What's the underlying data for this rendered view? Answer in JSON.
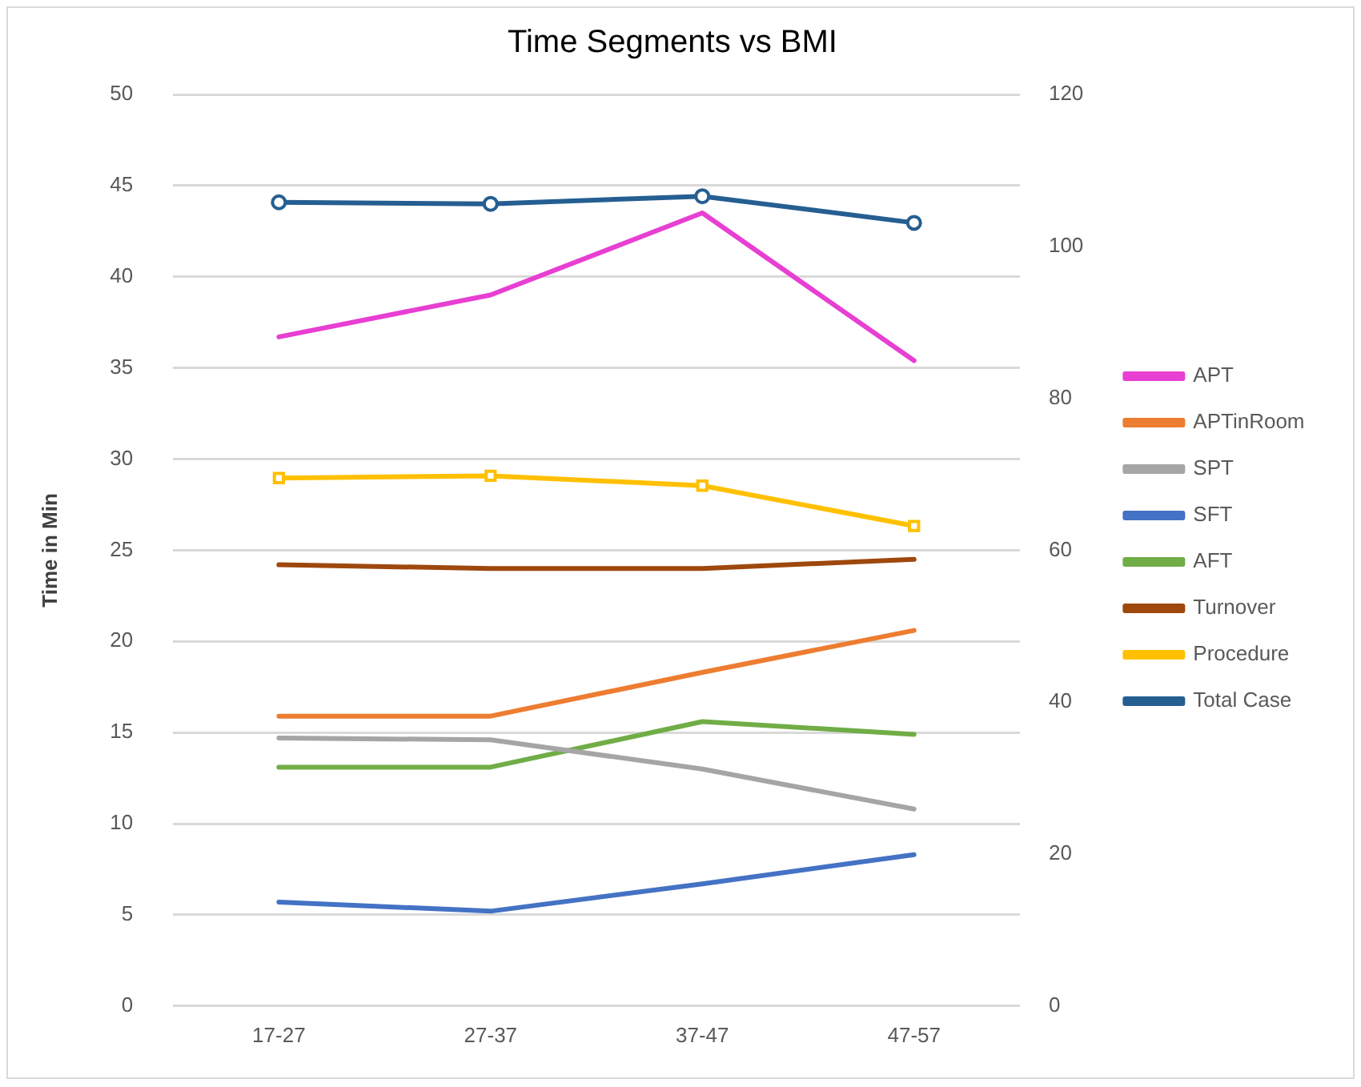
{
  "chart_data": {
    "type": "line",
    "title": "Time Segments vs BMI",
    "ylabel": "Time in Min",
    "categories": [
      "17-27",
      "27-37",
      "37-47",
      "47-57"
    ],
    "series": [
      {
        "name": "APT",
        "color": "#e83fd3",
        "values": [
          36.7,
          39.0,
          43.5,
          35.4
        ]
      },
      {
        "name": "APTinRoom",
        "color": "#ed7d31",
        "values": [
          15.9,
          15.9,
          18.3,
          20.6
        ]
      },
      {
        "name": "SPT",
        "color": "#a5a5a5",
        "values": [
          14.7,
          14.6,
          13.0,
          10.8
        ]
      },
      {
        "name": "SFT",
        "color": "#4472c4",
        "values": [
          5.7,
          5.2,
          6.7,
          8.3
        ]
      },
      {
        "name": "AFT",
        "color": "#70ad47",
        "values": [
          13.1,
          13.1,
          15.6,
          14.9
        ]
      },
      {
        "name": "Turnover",
        "color": "#9e480e",
        "values": [
          24.2,
          24.0,
          24.0,
          24.5
        ]
      },
      {
        "name": "Procedure",
        "color": "#ffc000",
        "axis": "y2",
        "marker": "square",
        "values": [
          69.5,
          69.8,
          68.5,
          63.2
        ]
      },
      {
        "name": "Total Case",
        "color": "#255e91",
        "axis": "y2",
        "marker": "circle",
        "values": [
          105.8,
          105.6,
          106.6,
          103.1
        ]
      }
    ],
    "ylim": [
      0,
      50
    ],
    "yticks": [
      0,
      5,
      10,
      15,
      20,
      25,
      30,
      35,
      40,
      45,
      50
    ],
    "y2lim": [
      0,
      120
    ],
    "y2ticks": [
      0,
      20,
      40,
      60,
      80,
      100,
      120
    ],
    "grid": "y",
    "legend": "right",
    "marker": "none",
    "line_style": "solid"
  }
}
